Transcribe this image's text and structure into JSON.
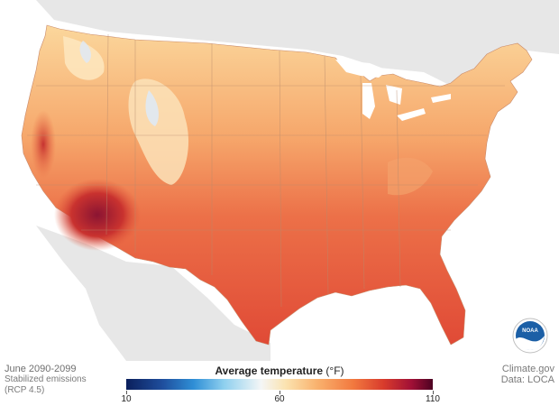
{
  "map": {
    "legend": {
      "title": "Average temperature",
      "unit": "(°F)",
      "ticks": [
        {
          "label": "10",
          "value": 10
        },
        {
          "label": "60",
          "value": 60
        },
        {
          "label": "110",
          "value": 110
        }
      ],
      "range": [
        10,
        110
      ]
    },
    "caption": {
      "period": "June 2090-2099",
      "scenario_line1": "Stabilized emissions",
      "scenario_line2": "(RCP 4.5)"
    },
    "credit": {
      "site": "Climate.gov",
      "source": "Data: LOCA"
    },
    "logo_text": "NOAA",
    "colors": {
      "background_land": "#e7e7e7",
      "water": "#ffffff",
      "cool": "#f9d9a0",
      "mild": "#f7a569",
      "warm": "#ea6a44",
      "hot": "#d94a3a",
      "very_hot": "#9d1a34",
      "cold_mountain": "#dfe9f4"
    }
  }
}
